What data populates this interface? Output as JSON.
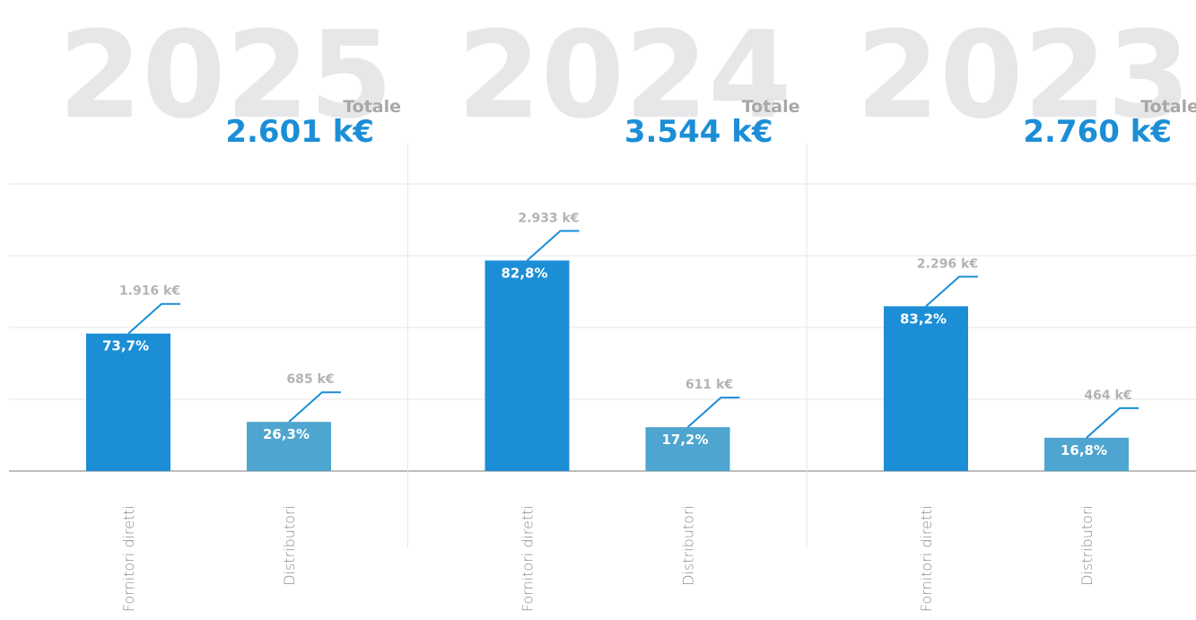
{
  "chart_data": [
    {
      "type": "bar",
      "title": "2025",
      "subtitle": "Totale",
      "total_label": "2.601 k€",
      "categories": [
        "Fornitori diretti",
        "Distributori"
      ],
      "values": [
        1916,
        685
      ],
      "value_labels": [
        "1.916 k€",
        "685 k€"
      ],
      "share_labels": [
        "73,7%",
        "26,3%"
      ],
      "colors": [
        "#1b8ed6",
        "#4ea5cf"
      ],
      "ylim": [
        0,
        4000
      ],
      "yticks": [
        0,
        1000,
        2000,
        3000,
        4000
      ],
      "grid": true
    },
    {
      "type": "bar",
      "title": "2024",
      "subtitle": "Totale",
      "total_label": "3.544 k€",
      "categories": [
        "Fornitori diretti",
        "Distributori"
      ],
      "values": [
        2933,
        611
      ],
      "value_labels": [
        "2.933 k€",
        "611 k€"
      ],
      "share_labels": [
        "82,8%",
        "17,2%"
      ],
      "colors": [
        "#1b8ed6",
        "#4ea5cf"
      ],
      "ylim": [
        0,
        4000
      ],
      "yticks": [
        0,
        1000,
        2000,
        3000,
        4000
      ],
      "grid": true
    },
    {
      "type": "bar",
      "title": "2023",
      "subtitle": "Totale",
      "total_label": "2.760 k€",
      "categories": [
        "Fornitori diretti",
        "Distributori"
      ],
      "values": [
        2296,
        464
      ],
      "value_labels": [
        "2.296 k€",
        "464 k€"
      ],
      "share_labels": [
        "83,2%",
        "16,8%"
      ],
      "colors": [
        "#1b8ed6",
        "#4ea5cf"
      ],
      "ylim": [
        0,
        4000
      ],
      "yticks": [
        0,
        1000,
        2000,
        3000,
        4000
      ],
      "grid": true
    }
  ]
}
